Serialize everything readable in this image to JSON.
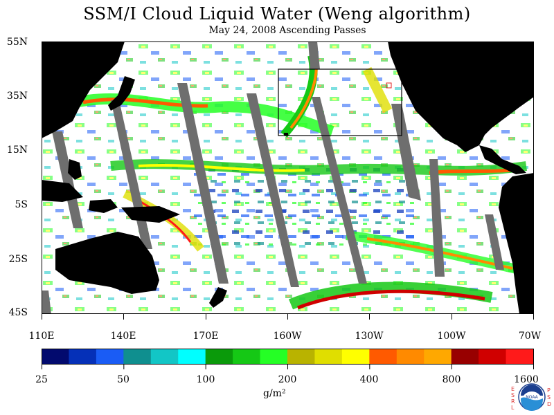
{
  "title": "SSM/I Cloud Liquid Water (Weng algorithm)",
  "subtitle": "May 24, 2008  Ascending Passes",
  "latitude_labels": [
    "55N",
    "35N",
    "15N",
    "5S",
    "25S",
    "45S"
  ],
  "longitude_labels": [
    "110E",
    "140E",
    "170E",
    "160W",
    "130W",
    "100W",
    "70W"
  ],
  "colorbar": {
    "colors": [
      "#020a6e",
      "#0530b8",
      "#1a5cf5",
      "#0f8f8f",
      "#12c6c6",
      "#00ffff",
      "#0a9a0a",
      "#15c815",
      "#25ff25",
      "#b9b300",
      "#e0de00",
      "#ffff00",
      "#ff5a00",
      "#ff8a00",
      "#ffa800",
      "#980000",
      "#d00000",
      "#ff1a1a"
    ],
    "tick_labels": [
      "25",
      "50",
      "100",
      "200",
      "400",
      "800",
      "1600"
    ],
    "unit": "g/m²"
  },
  "legend_colors": {
    "land": "#000000",
    "no_data_swath_gap": "#6e6e6e",
    "no_cloud": "#ffffff",
    "box_outline": "#000000",
    "highlight_box": "#e02020"
  },
  "logo": {
    "name": "NOAA",
    "left_letters": "ESRL",
    "right_letters": "PSD"
  }
}
